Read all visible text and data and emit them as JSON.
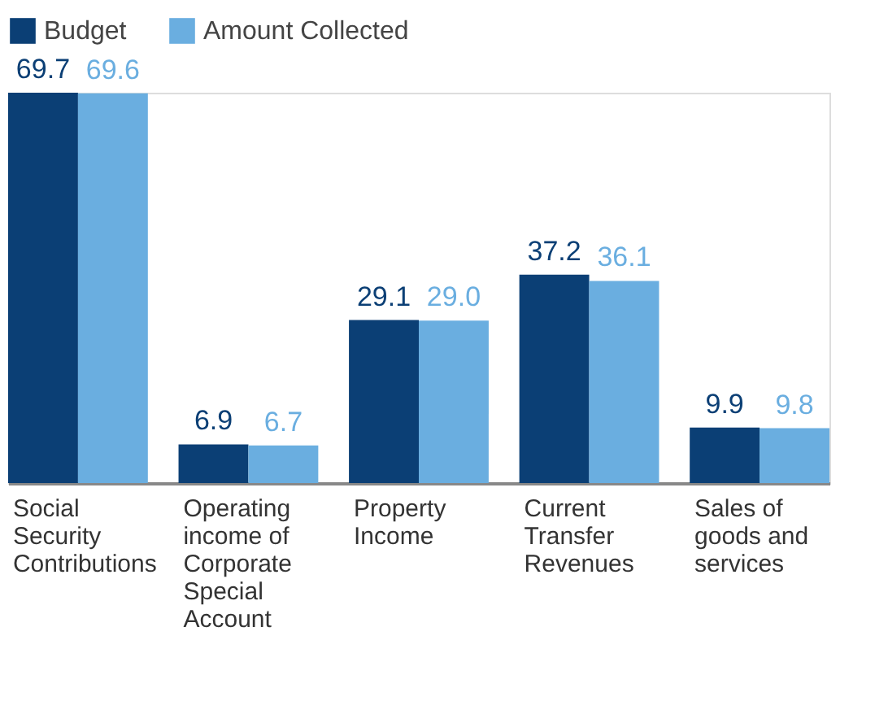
{
  "chart_data": {
    "type": "bar",
    "categories": [
      "Social Security Contributions",
      "Operating income of Corporate Special Account",
      "Property Income",
      "Current Transfer Revenues",
      "Sales of goods and services"
    ],
    "series": [
      {
        "name": "Budget",
        "color": "#0b3f75",
        "values": [
          69.7,
          6.9,
          29.1,
          37.2,
          9.9
        ]
      },
      {
        "name": "Amount Collected",
        "color": "#6aaee0",
        "values": [
          69.6,
          6.7,
          29.0,
          36.1,
          9.8
        ],
        "value_labels": [
          "69.6",
          "6.7",
          "29.0",
          "36.1",
          "9.8"
        ]
      }
    ],
    "data_labels": true,
    "legend": "top"
  }
}
